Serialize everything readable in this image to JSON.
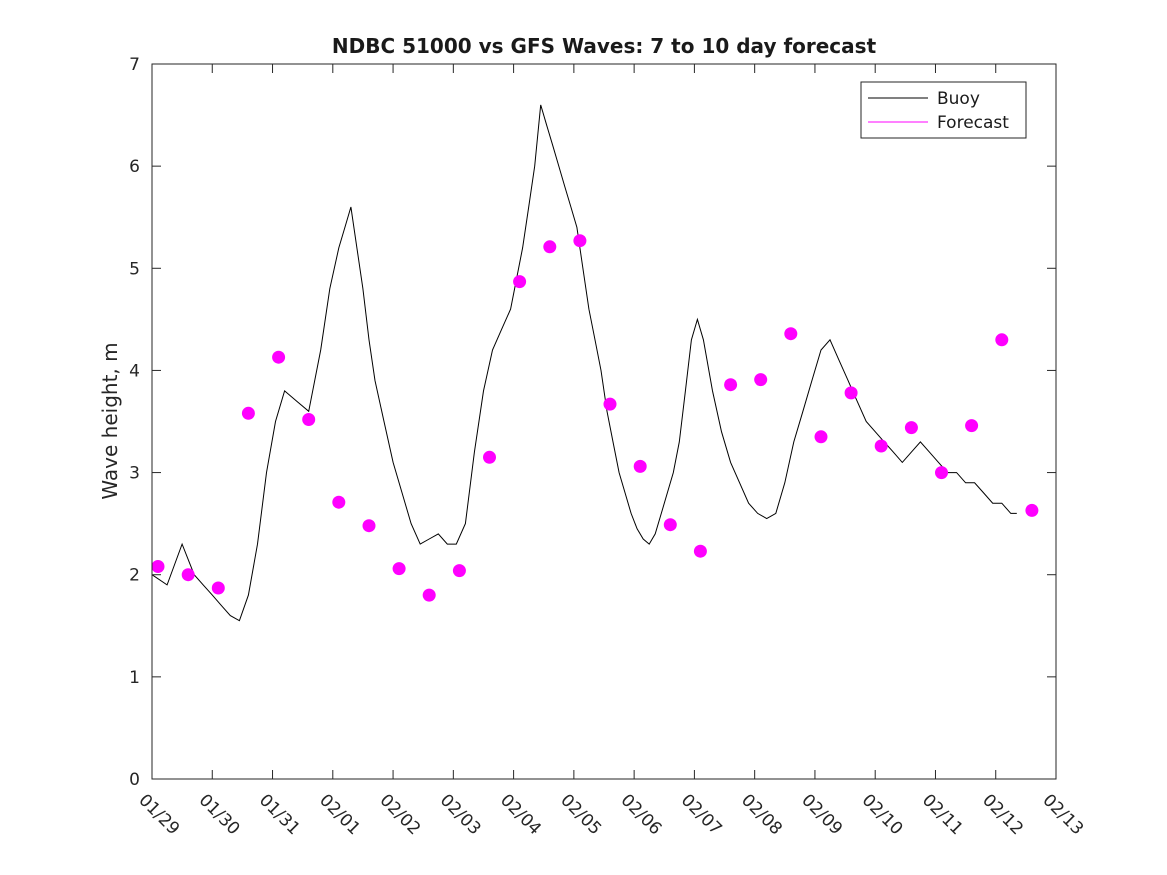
{
  "chart_data": {
    "type": "line",
    "title": "NDBC 51000 vs GFS Waves: 7 to 10 day forecast",
    "xlabel": "",
    "ylabel": "Wave height, m",
    "xlim": [
      0,
      15
    ],
    "ylim": [
      0,
      7
    ],
    "grid": false,
    "legend_position": "top-right",
    "x_tick_labels": [
      "01/29",
      "01/30",
      "01/31",
      "02/01",
      "02/02",
      "02/03",
      "02/04",
      "02/05",
      "02/06",
      "02/07",
      "02/08",
      "02/09",
      "02/10",
      "02/11",
      "02/12",
      "02/13"
    ],
    "y_ticks": [
      0,
      1,
      2,
      3,
      4,
      5,
      6,
      7
    ],
    "colors": {
      "buoy": "#000000",
      "forecast": "#ff00ff",
      "axes": "#262626"
    },
    "series": [
      {
        "name": "Buoy",
        "x": [
          0.0,
          0.25,
          0.5,
          0.7,
          0.85,
          1.0,
          1.15,
          1.3,
          1.45,
          1.6,
          1.75,
          1.9,
          2.05,
          2.2,
          2.4,
          2.6,
          2.8,
          2.95,
          3.1,
          3.2,
          3.3,
          3.4,
          3.5,
          3.6,
          3.7,
          3.85,
          4.0,
          4.15,
          4.3,
          4.45,
          4.6,
          4.75,
          4.9,
          5.05,
          5.2,
          5.35,
          5.5,
          5.65,
          5.8,
          5.95,
          6.05,
          6.15,
          6.25,
          6.35,
          6.45,
          6.55,
          6.65,
          6.75,
          6.85,
          6.95,
          7.05,
          7.15,
          7.25,
          7.35,
          7.45,
          7.55,
          7.65,
          7.75,
          7.85,
          7.95,
          8.05,
          8.15,
          8.25,
          8.35,
          8.45,
          8.55,
          8.65,
          8.75,
          8.85,
          8.95,
          9.05,
          9.15,
          9.3,
          9.45,
          9.6,
          9.75,
          9.9,
          10.05,
          10.2,
          10.35,
          10.5,
          10.65,
          10.8,
          10.95,
          11.1,
          11.25,
          11.4,
          11.55,
          11.7,
          11.85,
          12.0,
          12.15,
          12.3,
          12.45,
          12.6,
          12.75,
          12.9,
          13.05,
          13.2,
          13.35,
          13.5,
          13.65,
          13.8,
          13.95,
          14.1,
          14.25,
          14.35
        ],
        "values": [
          2.0,
          1.9,
          2.3,
          2.0,
          1.9,
          1.8,
          1.7,
          1.6,
          1.55,
          1.8,
          2.3,
          3.0,
          3.5,
          3.8,
          3.7,
          3.6,
          4.2,
          4.8,
          5.2,
          5.4,
          5.6,
          5.2,
          4.8,
          4.3,
          3.9,
          3.5,
          3.1,
          2.8,
          2.5,
          2.3,
          2.35,
          2.4,
          2.3,
          2.3,
          2.5,
          3.2,
          3.8,
          4.2,
          4.4,
          4.6,
          4.9,
          5.2,
          5.6,
          6.0,
          6.6,
          6.4,
          6.2,
          6.0,
          5.8,
          5.6,
          5.4,
          5.0,
          4.6,
          4.3,
          4.0,
          3.6,
          3.3,
          3.0,
          2.8,
          2.6,
          2.45,
          2.35,
          2.3,
          2.4,
          2.6,
          2.8,
          3.0,
          3.3,
          3.8,
          4.3,
          4.5,
          4.3,
          3.8,
          3.4,
          3.1,
          2.9,
          2.7,
          2.6,
          2.55,
          2.6,
          2.9,
          3.3,
          3.6,
          3.9,
          4.2,
          4.3,
          4.1,
          3.9,
          3.7,
          3.5,
          3.4,
          3.3,
          3.2,
          3.1,
          3.2,
          3.3,
          3.2,
          3.1,
          3.0,
          3.0,
          2.9,
          2.9,
          2.8,
          2.7,
          2.7,
          2.6,
          2.6
        ]
      },
      {
        "name": "Forecast",
        "points_x": [
          0.1,
          0.6,
          1.1,
          1.6,
          2.1,
          2.6,
          3.1,
          3.6,
          4.1,
          4.6,
          5.1,
          5.6,
          6.1,
          6.6,
          7.1,
          7.6,
          8.1,
          8.6,
          9.1,
          9.6,
          10.1,
          10.6,
          11.1,
          11.6,
          12.1,
          12.6,
          13.1,
          13.6,
          14.1,
          14.6
        ],
        "points_y": [
          2.08,
          2.0,
          1.87,
          3.58,
          4.13,
          3.52,
          2.71,
          2.48,
          2.06,
          1.8,
          2.04,
          3.15,
          4.87,
          5.21,
          5.27,
          3.67,
          3.06,
          2.49,
          2.23,
          3.86,
          3.91,
          4.36,
          3.35,
          3.78,
          3.26,
          3.44,
          3.0,
          3.46,
          4.3,
          2.63
        ]
      }
    ]
  },
  "legend": {
    "buoy_label": "Buoy",
    "forecast_label": "Forecast"
  }
}
